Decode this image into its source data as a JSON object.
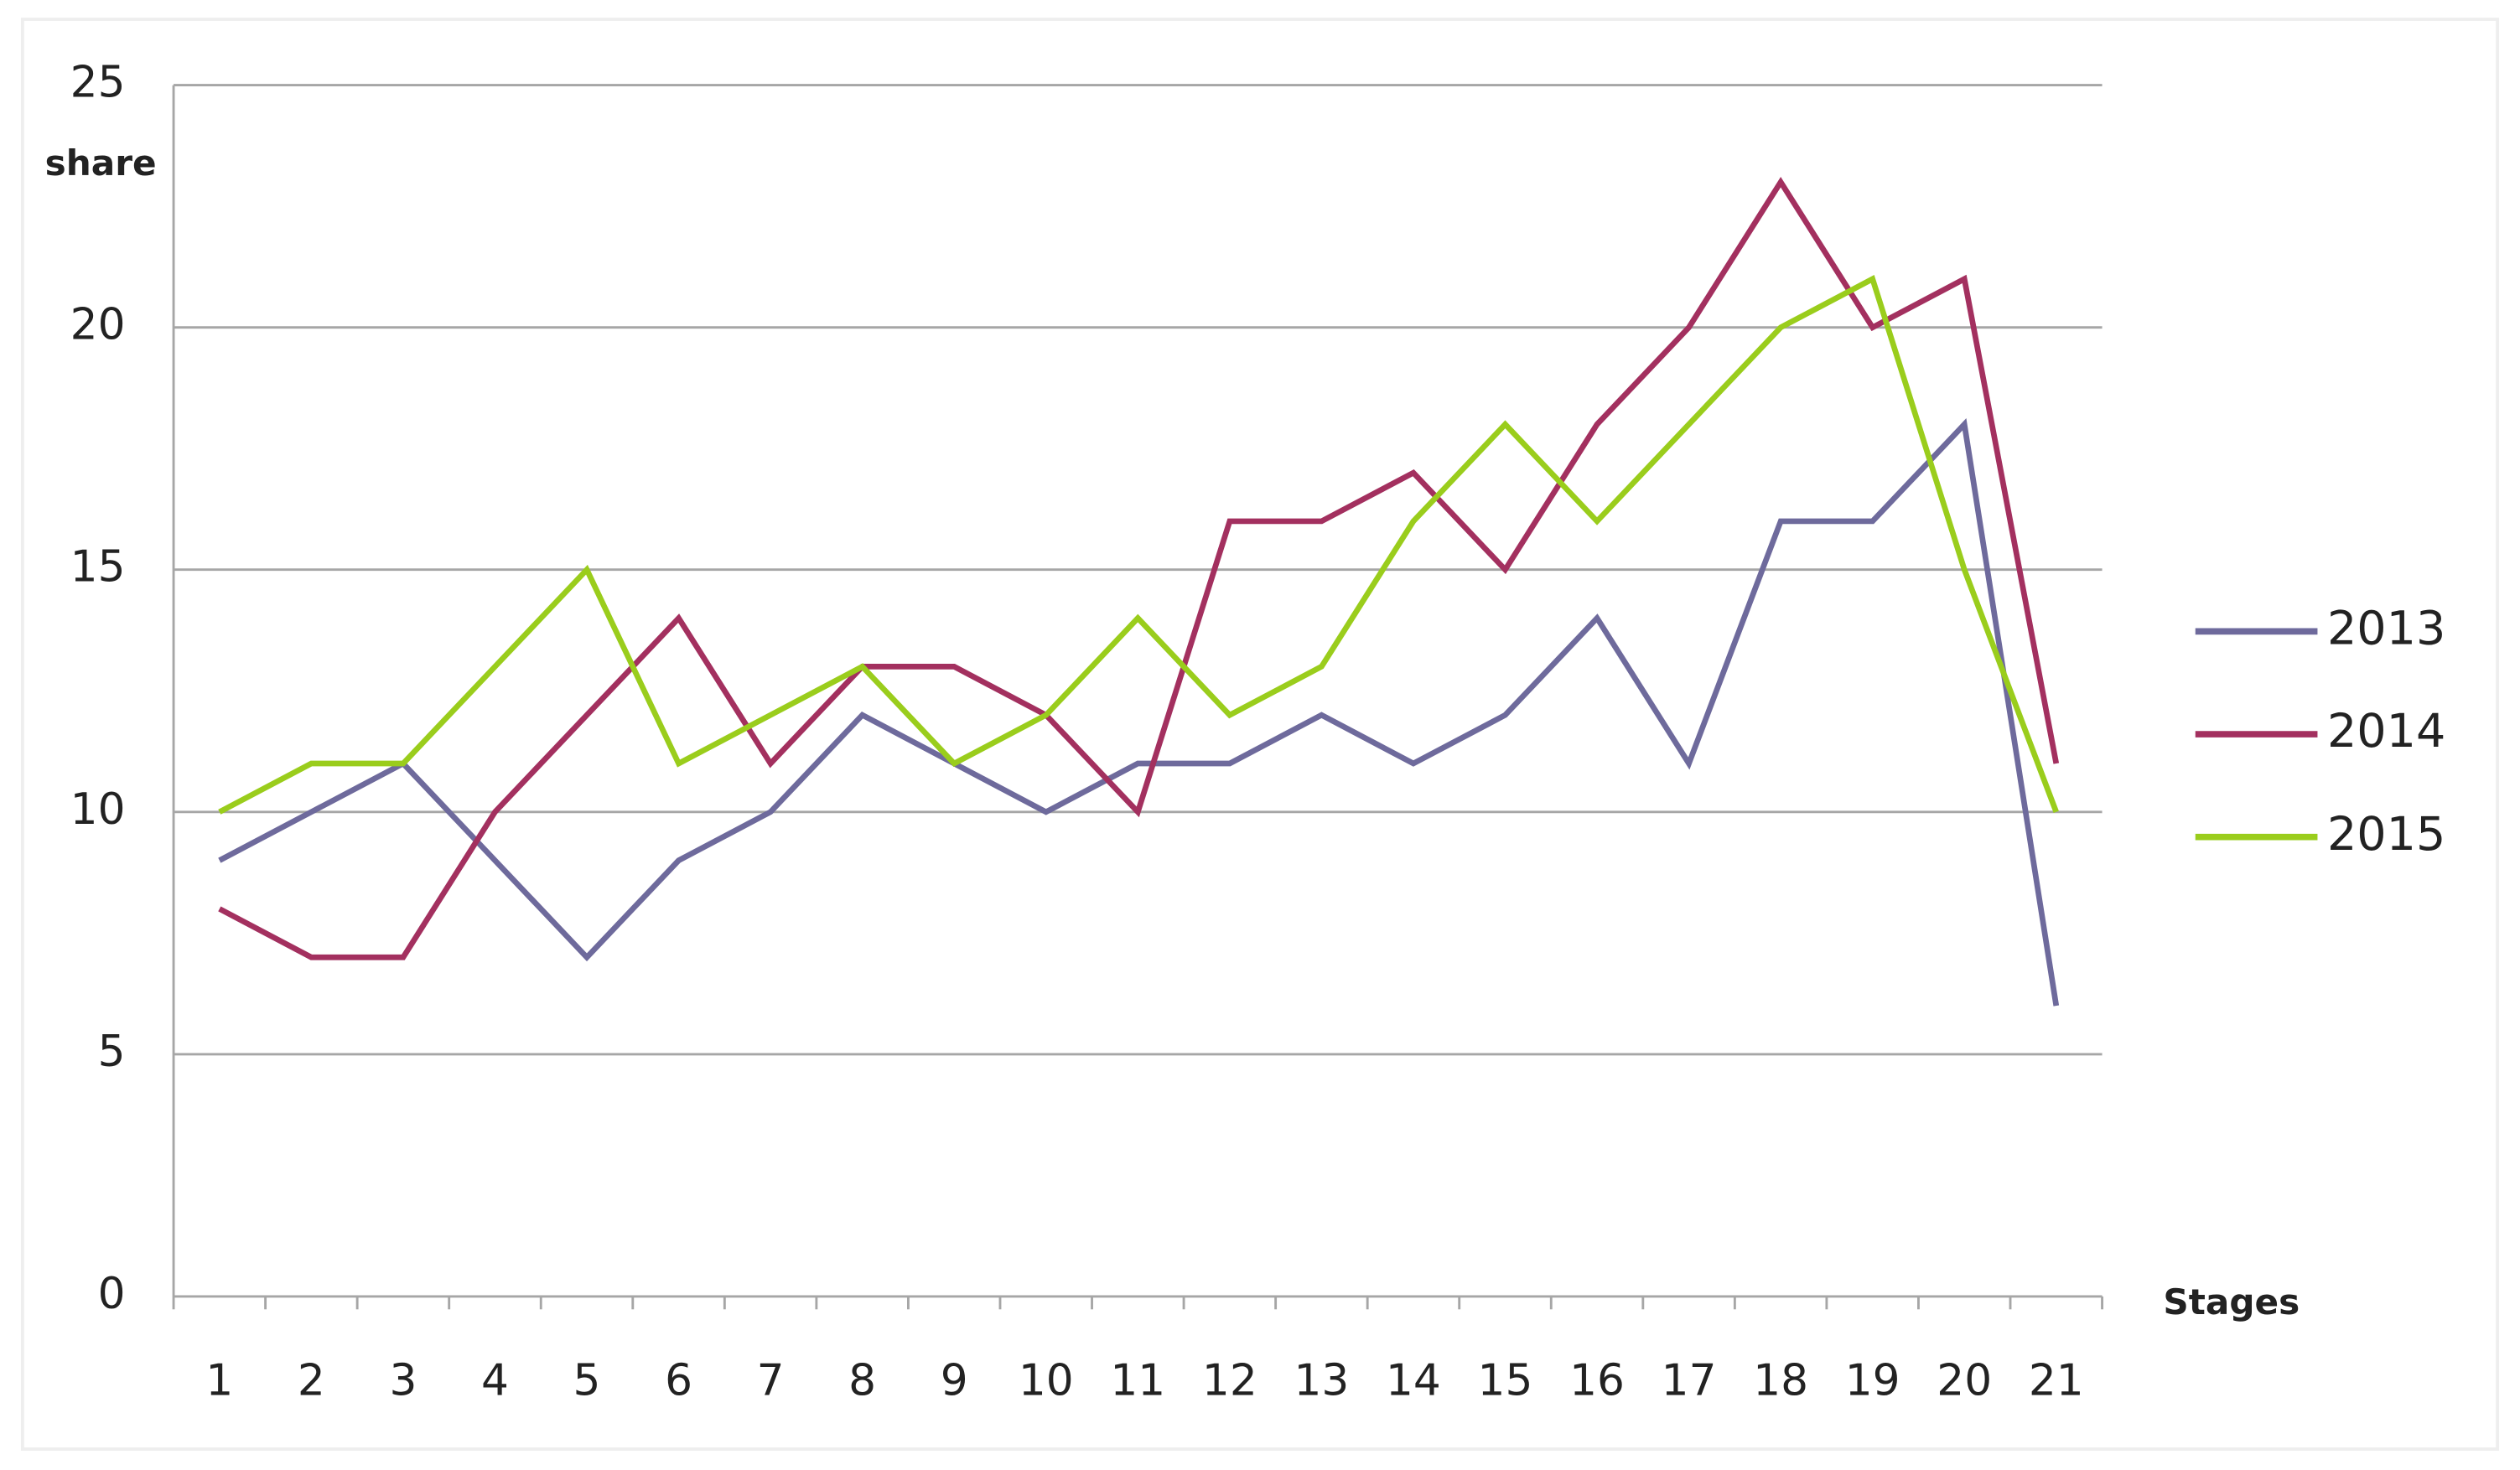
{
  "chart_data": {
    "type": "line",
    "y_label": "share",
    "x_label": "Stages",
    "categories": [
      "1",
      "2",
      "3",
      "4",
      "5",
      "6",
      "7",
      "8",
      "9",
      "10",
      "11",
      "12",
      "13",
      "14",
      "15",
      "16",
      "17",
      "18",
      "19",
      "20",
      "21"
    ],
    "series": [
      {
        "name": "2013",
        "color": "#6e6a9c",
        "values": [
          9,
          10,
          11,
          9,
          7,
          9,
          10,
          12,
          11,
          10,
          11,
          11,
          12,
          11,
          12,
          14,
          11,
          16,
          16,
          18,
          6
        ]
      },
      {
        "name": "2014",
        "color": "#a3305f",
        "values": [
          8,
          7,
          7,
          10,
          12,
          14,
          11,
          13,
          13,
          12,
          10,
          16,
          16,
          17,
          15,
          18,
          20,
          23,
          20,
          21,
          11
        ]
      },
      {
        "name": "2015",
        "color": "#9acd1c",
        "values": [
          10,
          11,
          11,
          13,
          15,
          11,
          12,
          13,
          11,
          12,
          14,
          12,
          13,
          16,
          18,
          16,
          18,
          20,
          21,
          15,
          10
        ]
      }
    ],
    "ylim": [
      0,
      25
    ],
    "yticks": [
      0,
      5,
      10,
      15,
      20,
      25
    ],
    "grid": true,
    "legend": "right"
  }
}
